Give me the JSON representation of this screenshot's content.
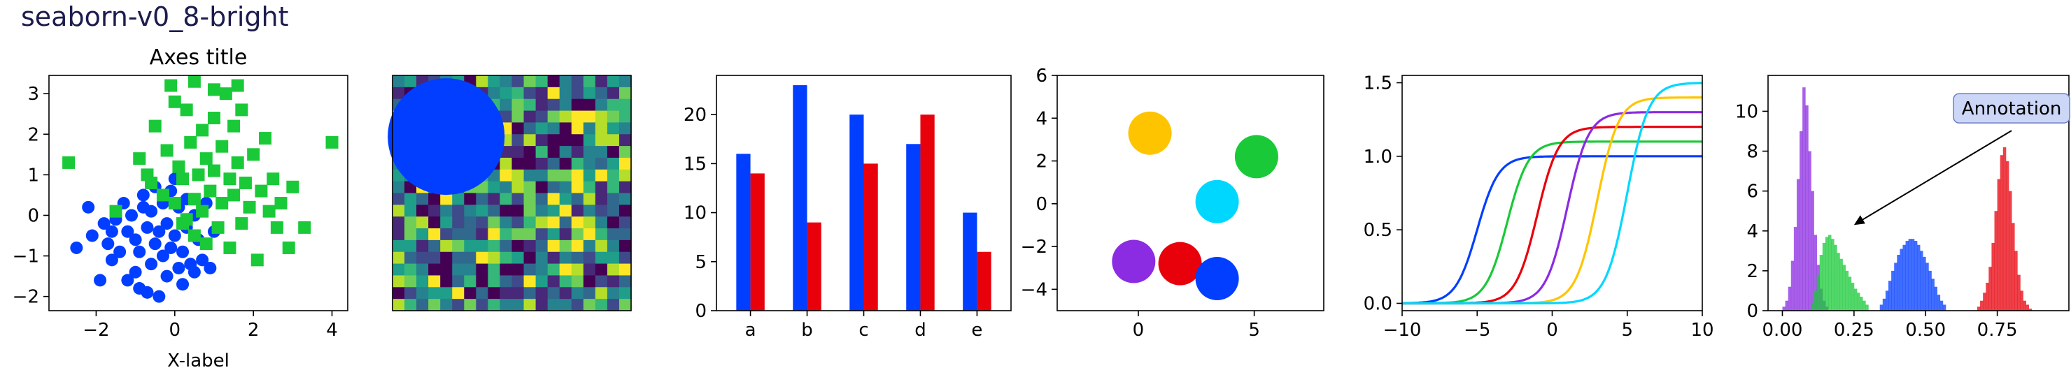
{
  "figure": {
    "title": "seaborn-v0_8-bright"
  },
  "colors": {
    "blue": "#023eff",
    "green": "#1ac938",
    "red": "#e8000b",
    "purple": "#8b2be2",
    "yellow": "#ffc400",
    "cyan": "#00d7ff"
  },
  "chart_data": [
    {
      "id": "scatter",
      "type": "scatter",
      "title": "Axes title",
      "xlabel": "X-label",
      "ylabel": "",
      "xlim": [
        -3.2,
        4.4
      ],
      "ylim": [
        -2.35,
        3.45
      ],
      "xticks": [
        -2,
        0,
        2,
        4
      ],
      "yticks": [
        -2,
        -1,
        0,
        1,
        2,
        3
      ],
      "series": [
        {
          "marker": "circle",
          "color": "blue",
          "points": [
            [
              -2.5,
              -0.8
            ],
            [
              -2.1,
              -0.5
            ],
            [
              -1.8,
              -0.2
            ],
            [
              -1.7,
              -0.7
            ],
            [
              -1.6,
              -1.1
            ],
            [
              -1.5,
              -0.1
            ],
            [
              -1.4,
              -0.9
            ],
            [
              -1.3,
              0.3
            ],
            [
              -1.2,
              -0.4
            ],
            [
              -1.2,
              -1.6
            ],
            [
              -1.1,
              0.0
            ],
            [
              -1.0,
              -0.6
            ],
            [
              -1.0,
              -1.4
            ],
            [
              -0.9,
              -0.9
            ],
            [
              -0.8,
              0.2
            ],
            [
              -0.8,
              0.5
            ],
            [
              -0.7,
              -1.9
            ],
            [
              -0.7,
              -0.3
            ],
            [
              -0.6,
              -1.2
            ],
            [
              -0.6,
              0.1
            ],
            [
              -0.5,
              -0.7
            ],
            [
              -0.5,
              0.7
            ],
            [
              -0.4,
              -0.4
            ],
            [
              -0.4,
              -2.0
            ],
            [
              -0.3,
              -1.0
            ],
            [
              -0.3,
              0.3
            ],
            [
              -0.2,
              -0.2
            ],
            [
              -0.2,
              -1.5
            ],
            [
              -0.1,
              0.6
            ],
            [
              -0.1,
              -0.8
            ],
            [
              0.0,
              -0.5
            ],
            [
              0.0,
              0.9
            ],
            [
              0.1,
              -1.3
            ],
            [
              0.1,
              0.2
            ],
            [
              0.2,
              -0.9
            ],
            [
              0.3,
              0.4
            ],
            [
              0.3,
              -0.3
            ],
            [
              0.4,
              -1.2
            ],
            [
              0.5,
              0.0
            ],
            [
              0.6,
              -0.6
            ],
            [
              0.7,
              -1.1
            ],
            [
              0.8,
              0.3
            ],
            [
              0.9,
              -1.3
            ],
            [
              1.0,
              -0.4
            ],
            [
              0.2,
              -1.7
            ],
            [
              -1.9,
              -1.6
            ],
            [
              -0.9,
              -1.8
            ],
            [
              -2.2,
              0.2
            ],
            [
              -1.6,
              -0.4
            ],
            [
              0.5,
              -1.4
            ]
          ]
        },
        {
          "marker": "square",
          "color": "green",
          "points": [
            [
              -2.7,
              1.3
            ],
            [
              -1.5,
              0.1
            ],
            [
              -0.9,
              1.4
            ],
            [
              -0.7,
              1.0
            ],
            [
              -0.5,
              2.2
            ],
            [
              -0.3,
              0.5
            ],
            [
              -0.2,
              1.6
            ],
            [
              -0.1,
              3.2
            ],
            [
              0.0,
              2.8
            ],
            [
              0.0,
              0.3
            ],
            [
              0.1,
              1.2
            ],
            [
              0.2,
              0.9
            ],
            [
              0.2,
              -0.2
            ],
            [
              0.3,
              2.6
            ],
            [
              0.4,
              1.8
            ],
            [
              0.5,
              0.4
            ],
            [
              0.5,
              -0.5
            ],
            [
              0.6,
              1.0
            ],
            [
              0.7,
              2.1
            ],
            [
              0.7,
              0.1
            ],
            [
              0.8,
              1.4
            ],
            [
              0.8,
              -0.7
            ],
            [
              0.9,
              0.6
            ],
            [
              1.0,
              2.4
            ],
            [
              1.0,
              1.1
            ],
            [
              1.1,
              -0.3
            ],
            [
              1.2,
              1.7
            ],
            [
              1.2,
              0.3
            ],
            [
              1.3,
              3.0
            ],
            [
              1.4,
              0.9
            ],
            [
              1.4,
              -0.8
            ],
            [
              1.5,
              2.2
            ],
            [
              1.5,
              0.5
            ],
            [
              1.6,
              1.3
            ],
            [
              1.7,
              -0.2
            ],
            [
              1.7,
              2.6
            ],
            [
              1.8,
              0.8
            ],
            [
              1.9,
              0.2
            ],
            [
              2.0,
              1.5
            ],
            [
              2.1,
              -1.1
            ],
            [
              2.2,
              0.6
            ],
            [
              2.3,
              1.9
            ],
            [
              2.4,
              0.1
            ],
            [
              2.5,
              0.9
            ],
            [
              2.7,
              0.3
            ],
            [
              2.9,
              -0.8
            ],
            [
              3.0,
              0.7
            ],
            [
              3.3,
              -0.3
            ],
            [
              4.0,
              1.8
            ],
            [
              1.6,
              3.2
            ],
            [
              0.5,
              3.3
            ],
            [
              1.0,
              3.1
            ],
            [
              -0.6,
              0.8
            ],
            [
              0.3,
              -0.1
            ],
            [
              2.6,
              -0.3
            ]
          ]
        }
      ]
    },
    {
      "id": "image",
      "type": "heatmap",
      "title": "",
      "xlabel": "",
      "ylabel": "",
      "grid_size": 20,
      "circle_color": "blue"
    },
    {
      "id": "bars",
      "type": "bar",
      "title": "",
      "xlabel": "",
      "ylabel": "",
      "categories": [
        "a",
        "b",
        "c",
        "d",
        "e"
      ],
      "ylim": [
        0,
        24
      ],
      "yticks": [
        0,
        5,
        10,
        15,
        20
      ],
      "series": [
        {
          "color": "blue",
          "values": [
            16,
            23,
            20,
            17,
            10
          ]
        },
        {
          "color": "red",
          "values": [
            14,
            9,
            15,
            20,
            6
          ]
        }
      ]
    },
    {
      "id": "circles",
      "type": "scatter",
      "title": "",
      "xlabel": "",
      "ylabel": "",
      "xlim": [
        -3.5,
        8
      ],
      "ylim": [
        -5,
        6
      ],
      "xticks": [
        0,
        5
      ],
      "yticks": [
        -4,
        -2,
        0,
        2,
        4,
        6
      ],
      "points": [
        {
          "x": 0.5,
          "y": 3.3,
          "color": "yellow"
        },
        {
          "x": 5.1,
          "y": 2.2,
          "color": "green"
        },
        {
          "x": 3.4,
          "y": 0.1,
          "color": "cyan"
        },
        {
          "x": -0.2,
          "y": -2.7,
          "color": "purple"
        },
        {
          "x": 1.8,
          "y": -2.8,
          "color": "red"
        },
        {
          "x": 3.4,
          "y": -3.5,
          "color": "blue"
        }
      ]
    },
    {
      "id": "sigmoids",
      "type": "line",
      "title": "",
      "xlabel": "",
      "ylabel": "",
      "xlim": [
        -10,
        10
      ],
      "ylim": [
        -0.05,
        1.55
      ],
      "xticks": [
        -10,
        -5,
        0,
        5,
        10
      ],
      "yticks": [
        0.0,
        0.5,
        1.0,
        1.5
      ],
      "series": [
        {
          "color": "blue",
          "center": -5,
          "amplitude": 1.0
        },
        {
          "color": "green",
          "center": -3,
          "amplitude": 1.1
        },
        {
          "color": "red",
          "center": -1,
          "amplitude": 1.2
        },
        {
          "color": "purple",
          "center": 1,
          "amplitude": 1.3
        },
        {
          "color": "yellow",
          "center": 3,
          "amplitude": 1.4
        },
        {
          "color": "cyan",
          "center": 5,
          "amplitude": 1.5
        }
      ]
    },
    {
      "id": "histograms",
      "type": "bar",
      "title": "",
      "xlabel": "",
      "ylabel": "",
      "xlim": [
        -0.05,
        1.0
      ],
      "ylim": [
        0,
        11.8
      ],
      "xticks": [
        0.0,
        0.25,
        0.5,
        0.75
      ],
      "yticks": [
        0,
        2,
        4,
        6,
        8,
        10
      ],
      "annotation": {
        "text": "Annotation",
        "arrow_from": [
          0.8,
          9.8
        ],
        "arrow_to": [
          0.25,
          4.3
        ]
      },
      "series": [
        {
          "color": "purple",
          "x_start": 0.0,
          "bin_width": 0.01,
          "values": [
            0.2,
            0.5,
            1.2,
            2.5,
            4.2,
            6.6,
            9.0,
            11.2,
            10.3,
            8.0,
            6.0,
            3.8,
            2.3,
            1.1,
            0.5,
            0.2
          ]
        },
        {
          "color": "green",
          "x_start": 0.1,
          "bin_width": 0.01,
          "values": [
            0.4,
            1.0,
            1.8,
            2.8,
            3.4,
            3.7,
            3.8,
            3.6,
            3.3,
            2.9,
            2.6,
            2.3,
            2.0,
            1.7,
            1.4,
            1.1,
            0.9,
            0.7,
            0.5,
            0.3
          ]
        },
        {
          "color": "blue",
          "x_start": 0.34,
          "bin_width": 0.01,
          "values": [
            0.3,
            0.6,
            1.0,
            1.5,
            2.0,
            2.4,
            2.8,
            3.1,
            3.3,
            3.5,
            3.6,
            3.6,
            3.5,
            3.3,
            3.0,
            2.7,
            2.4,
            2.0,
            1.6,
            1.2,
            0.8,
            0.5,
            0.3
          ]
        },
        {
          "color": "red",
          "x_start": 0.68,
          "bin_width": 0.01,
          "values": [
            0.2,
            0.5,
            0.9,
            1.4,
            2.2,
            3.4,
            5.0,
            6.6,
            7.8,
            8.2,
            7.5,
            6.0,
            4.4,
            3.0,
            1.8,
            1.0,
            0.5,
            0.3,
            0.1
          ]
        }
      ]
    }
  ]
}
